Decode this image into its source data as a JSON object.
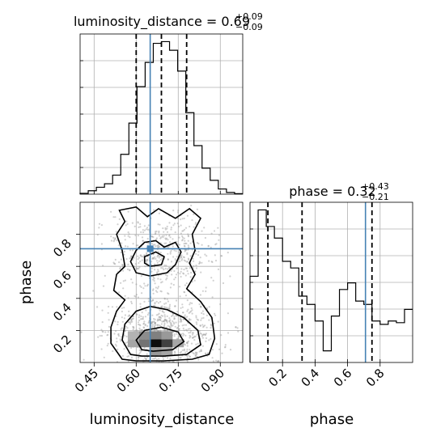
{
  "chart_data": {
    "type": "corner",
    "parameters": [
      "luminosity_distance",
      "phase"
    ],
    "truth": {
      "luminosity_distance": 0.65,
      "phase": 0.71,
      "color": "#4682b4"
    },
    "luminosity_distance": {
      "title_prefix": "luminosity_distance = ",
      "median": "0.69",
      "plus": "+0.09",
      "minus": "−0.09",
      "quantiles": [
        0.6,
        0.69,
        0.78
      ],
      "xlim": [
        0.4,
        0.98
      ],
      "xticks": [
        0.45,
        0.6,
        0.75,
        0.9
      ],
      "xtick_labels": [
        "0.45",
        "0.60",
        "0.75",
        "0.90"
      ],
      "xlabel": "luminosity_distance",
      "hist_edges": [
        0.4,
        0.429,
        0.458,
        0.487,
        0.516,
        0.545,
        0.574,
        0.603,
        0.632,
        0.661,
        0.69,
        0.719,
        0.748,
        0.777,
        0.806,
        0.835,
        0.864,
        0.893,
        0.922,
        0.951,
        0.98
      ],
      "hist_counts": [
        0.5,
        2,
        4,
        6,
        11,
        23,
        41,
        62,
        76,
        87,
        88,
        83,
        71,
        47,
        28,
        15,
        8,
        3,
        1,
        0.3
      ]
    },
    "phase": {
      "title_prefix": "phase = ",
      "median": "0.32",
      "plus": "+0.43",
      "minus": "−0.21",
      "quantiles": [
        0.11,
        0.32,
        0.75
      ],
      "xlim": [
        0.0,
        1.0
      ],
      "xticks": [
        0.2,
        0.4,
        0.6,
        0.8
      ],
      "xtick_labels": [
        "0.2",
        "0.4",
        "0.6",
        "0.8"
      ],
      "xlabel": "phase",
      "hist_edges": [
        0.0,
        0.05,
        0.1,
        0.15,
        0.2,
        0.25,
        0.3,
        0.35,
        0.4,
        0.45,
        0.5,
        0.55,
        0.6,
        0.65,
        0.7,
        0.75,
        0.8,
        0.85,
        0.9,
        0.95,
        1.0
      ],
      "hist_counts": [
        52,
        92,
        82,
        75,
        61,
        57,
        40,
        35,
        25,
        7,
        28,
        44,
        48,
        37,
        35,
        25,
        23,
        25,
        24,
        32
      ]
    },
    "joint": {
      "ylim": [
        0.0,
        1.0
      ],
      "yticks": [
        0.2,
        0.4,
        0.6,
        0.8
      ],
      "ytick_labels": [
        "0.2",
        "0.4",
        "0.6",
        "0.8"
      ],
      "ylabel": "phase",
      "cells": [
        {
          "x": 0.59,
          "y": 0.12,
          "v": 0.35
        },
        {
          "x": 0.63,
          "y": 0.12,
          "v": 0.55
        },
        {
          "x": 0.67,
          "y": 0.12,
          "v": 0.95
        },
        {
          "x": 0.71,
          "y": 0.12,
          "v": 0.75
        },
        {
          "x": 0.75,
          "y": 0.12,
          "v": 0.35
        },
        {
          "x": 0.59,
          "y": 0.17,
          "v": 0.3
        },
        {
          "x": 0.63,
          "y": 0.17,
          "v": 0.45
        },
        {
          "x": 0.67,
          "y": 0.17,
          "v": 0.5
        },
        {
          "x": 0.71,
          "y": 0.17,
          "v": 0.4
        },
        {
          "x": 0.67,
          "y": 0.07,
          "v": 0.4
        },
        {
          "x": 0.71,
          "y": 0.07,
          "v": 0.35
        }
      ],
      "contours": [
        [
          [
            0.55,
            0.02
          ],
          [
            0.51,
            0.12
          ],
          [
            0.51,
            0.22
          ],
          [
            0.53,
            0.32
          ],
          [
            0.56,
            0.39
          ],
          [
            0.52,
            0.45
          ],
          [
            0.53,
            0.55
          ],
          [
            0.56,
            0.6
          ],
          [
            0.55,
            0.7
          ],
          [
            0.53,
            0.8
          ],
          [
            0.56,
            0.88
          ],
          [
            0.54,
            0.95
          ],
          [
            0.6,
            0.97
          ],
          [
            0.64,
            0.91
          ],
          [
            0.68,
            0.96
          ],
          [
            0.74,
            0.9
          ],
          [
            0.79,
            0.96
          ],
          [
            0.83,
            0.9
          ],
          [
            0.8,
            0.8
          ],
          [
            0.81,
            0.7
          ],
          [
            0.79,
            0.62
          ],
          [
            0.81,
            0.55
          ],
          [
            0.78,
            0.46
          ],
          [
            0.83,
            0.38
          ],
          [
            0.87,
            0.28
          ],
          [
            0.88,
            0.15
          ],
          [
            0.86,
            0.05
          ],
          [
            0.8,
            0.02
          ],
          [
            0.7,
            0.01
          ],
          [
            0.6,
            0.01
          ],
          [
            0.55,
            0.02
          ]
        ],
        [
          [
            0.58,
            0.05
          ],
          [
            0.55,
            0.14
          ],
          [
            0.56,
            0.24
          ],
          [
            0.6,
            0.32
          ],
          [
            0.65,
            0.35
          ],
          [
            0.71,
            0.33
          ],
          [
            0.77,
            0.28
          ],
          [
            0.82,
            0.2
          ],
          [
            0.83,
            0.11
          ],
          [
            0.78,
            0.05
          ],
          [
            0.7,
            0.04
          ],
          [
            0.62,
            0.04
          ],
          [
            0.58,
            0.05
          ]
        ],
        [
          [
            0.6,
            0.56
          ],
          [
            0.58,
            0.63
          ],
          [
            0.6,
            0.7
          ],
          [
            0.63,
            0.75
          ],
          [
            0.67,
            0.76
          ],
          [
            0.7,
            0.72
          ],
          [
            0.74,
            0.75
          ],
          [
            0.76,
            0.69
          ],
          [
            0.74,
            0.61
          ],
          [
            0.71,
            0.56
          ],
          [
            0.65,
            0.54
          ],
          [
            0.6,
            0.56
          ]
        ],
        [
          [
            0.62,
            0.08
          ],
          [
            0.6,
            0.14
          ],
          [
            0.63,
            0.2
          ],
          [
            0.69,
            0.22
          ],
          [
            0.75,
            0.19
          ],
          [
            0.77,
            0.13
          ],
          [
            0.73,
            0.08
          ],
          [
            0.66,
            0.07
          ],
          [
            0.62,
            0.08
          ]
        ],
        [
          [
            0.63,
            0.62
          ],
          [
            0.63,
            0.66
          ],
          [
            0.67,
            0.69
          ],
          [
            0.7,
            0.66
          ],
          [
            0.69,
            0.61
          ],
          [
            0.65,
            0.6
          ],
          [
            0.63,
            0.62
          ]
        ]
      ]
    }
  }
}
